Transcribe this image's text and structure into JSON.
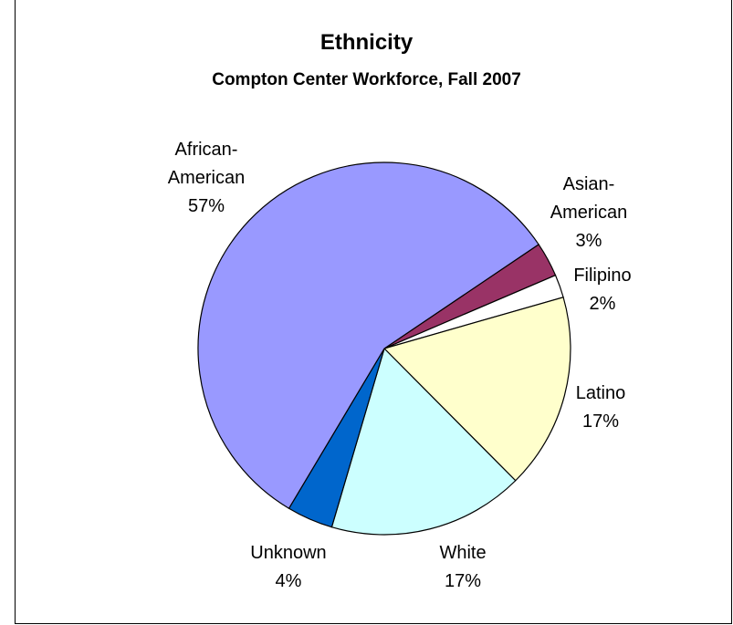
{
  "chart_data": {
    "type": "pie",
    "title": "Ethnicity",
    "subtitle": "Compton Center Workforce, Fall 2007",
    "slices": [
      {
        "label_lines": [
          "Asian-",
          "American",
          "3%"
        ],
        "value": 3,
        "color": "#993366"
      },
      {
        "label_lines": [
          "Filipino",
          "2%"
        ],
        "value": 2,
        "color": "#ffffff"
      },
      {
        "label_lines": [
          "Latino",
          "17%"
        ],
        "value": 17,
        "color": "#ffffcc"
      },
      {
        "label_lines": [
          "White",
          "17%"
        ],
        "value": 17,
        "color": "#ccffff"
      },
      {
        "label_lines": [
          "Unknown",
          "4%"
        ],
        "value": 4,
        "color": "#0066cc"
      },
      {
        "label_lines": [
          "African-",
          "American",
          "57%"
        ],
        "value": 57,
        "color": "#9999ff"
      }
    ]
  }
}
